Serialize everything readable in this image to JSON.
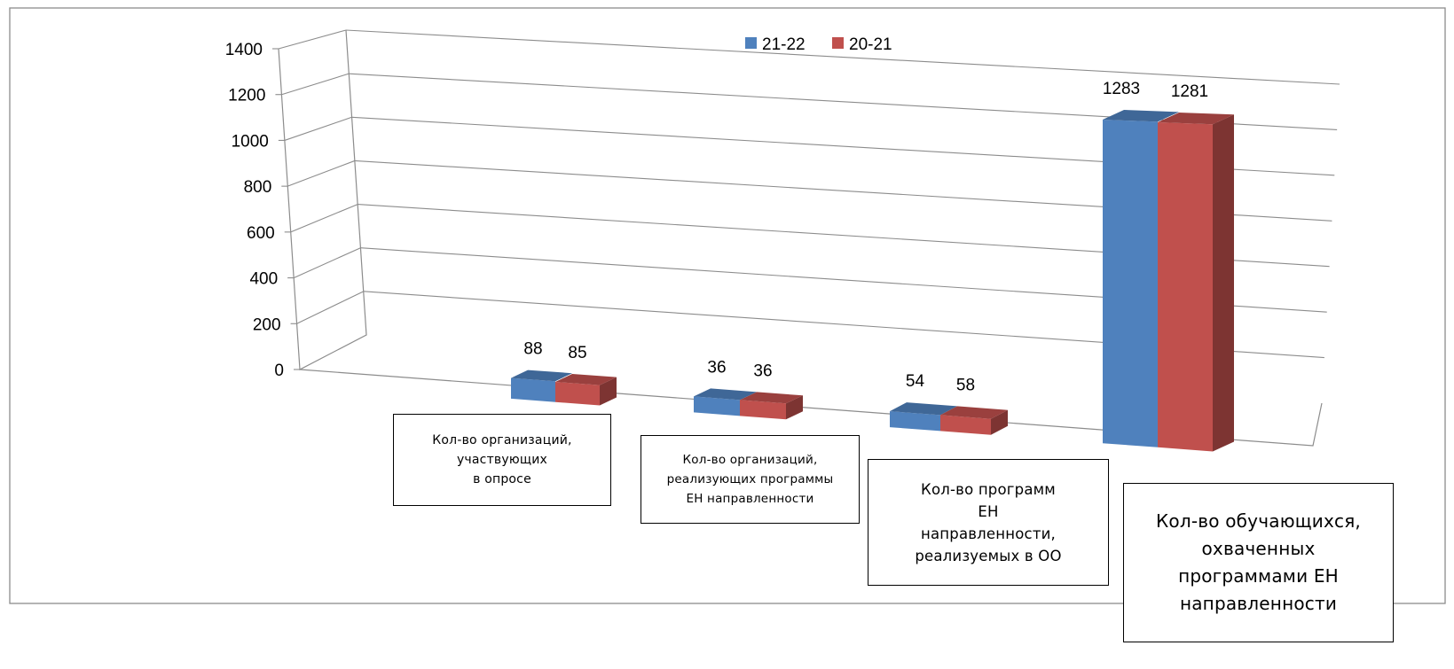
{
  "chart_data": {
    "type": "bar",
    "style": "3d-clustered-column",
    "categories": [
      "Кол-во организаций,\nучаствующих\nв опросе",
      "Кол-во организаций,\nреализующих программы\nЕН направленности",
      "Кол-во программ\nЕН\nнаправленности,\nреализуемых в ОО",
      "Кол-во обучающихся,\nохваченных\nпрограммами ЕН\nнаправленности"
    ],
    "series": [
      {
        "name": "21-22",
        "values": [
          88,
          36,
          54,
          1283
        ],
        "color": "#4F81BD"
      },
      {
        "name": "20-21",
        "values": [
          85,
          36,
          58,
          1281
        ],
        "color": "#C0504D"
      }
    ],
    "ylim": [
      0,
      1400
    ],
    "yticks": [
      "0",
      "200",
      "400",
      "600",
      "800",
      "1000",
      "1200",
      "1400"
    ],
    "data_labels": [
      [
        "88",
        "36",
        "54",
        "1283"
      ],
      [
        "85",
        "36",
        "58",
        "1281"
      ]
    ],
    "grid": true,
    "legend_position": "top-center",
    "title": "",
    "xlabel": "",
    "ylabel": ""
  }
}
